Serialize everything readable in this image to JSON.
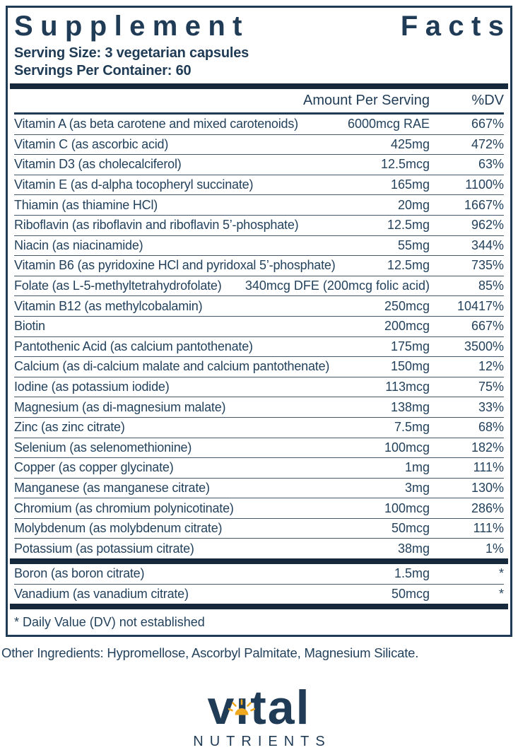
{
  "label": {
    "title_words": [
      "Supplement",
      "Facts"
    ],
    "serving_size": "Serving Size: 3 vegetarian capsules",
    "servings_per_container": "Servings Per Container: 60",
    "columns": {
      "amount": "Amount Per Serving",
      "dv": "%DV"
    },
    "rows": [
      {
        "name": "Vitamin A (as beta carotene and mixed carotenoids)",
        "amount": "6000mcg RAE",
        "dv": "667%"
      },
      {
        "name": "Vitamin C (as ascorbic acid)",
        "amount": "425mg",
        "dv": "472%"
      },
      {
        "name": "Vitamin D3 (as cholecalciferol)",
        "amount": "12.5mcg",
        "dv": "63%"
      },
      {
        "name": "Vitamin E (as d-alpha tocopheryl succinate)",
        "amount": "165mg",
        "dv": "1100%"
      },
      {
        "name": "Thiamin (as thiamine HCl)",
        "amount": "20mg",
        "dv": "1667%"
      },
      {
        "name": "Riboflavin (as riboflavin and riboflavin 5’-phosphate)",
        "amount": "12.5mg",
        "dv": "962%"
      },
      {
        "name": "Niacin (as niacinamide)",
        "amount": "55mg",
        "dv": "344%"
      },
      {
        "name": "Vitamin B6 (as pyridoxine HCl and pyridoxal 5’-phosphate)",
        "amount": "12.5mg",
        "dv": "735%"
      },
      {
        "name": "Folate (as L-5-methyltetrahydrofolate)",
        "amount": "340mcg DFE (200mcg folic acid)",
        "dv": "85%"
      },
      {
        "name": "Vitamin B12 (as methylcobalamin)",
        "amount": "250mcg",
        "dv": "10417%"
      },
      {
        "name": "Biotin",
        "amount": "200mcg",
        "dv": "667%"
      },
      {
        "name": "Pantothenic Acid (as calcium pantothenate)",
        "amount": "175mg",
        "dv": "3500%"
      },
      {
        "name": "Calcium (as di-calcium malate and calcium pantothenate)",
        "amount": "150mg",
        "dv": "12%"
      },
      {
        "name": "Iodine (as potassium iodide)",
        "amount": "113mcg",
        "dv": "75%"
      },
      {
        "name": "Magnesium (as di-magnesium malate)",
        "amount": "138mg",
        "dv": "33%"
      },
      {
        "name": "Zinc (as zinc citrate)",
        "amount": "7.5mg",
        "dv": "68%"
      },
      {
        "name": "Selenium (as selenomethionine)",
        "amount": "100mcg",
        "dv": "182%"
      },
      {
        "name": "Copper (as copper glycinate)",
        "amount": "1mg",
        "dv": "111%"
      },
      {
        "name": "Manganese (as manganese citrate)",
        "amount": "3mg",
        "dv": "130%"
      },
      {
        "name": "Chromium (as chromium polynicotinate)",
        "amount": "100mcg",
        "dv": "286%"
      },
      {
        "name": "Molybdenum (as molybdenum citrate)",
        "amount": "50mcg",
        "dv": "111%"
      },
      {
        "name": "Potassium (as potassium citrate)",
        "amount": "38mg",
        "dv": "1%"
      }
    ],
    "secondary_rows": [
      {
        "name": "Boron (as boron citrate)",
        "amount": "1.5mg",
        "dv": "*"
      },
      {
        "name": "Vanadium (as vanadium citrate)",
        "amount": "50mcg",
        "dv": "*"
      }
    ],
    "footnote": "* Daily Value (DV) not established",
    "other_ingredients": "Other Ingredients: Hypromellose, Ascorbyl Palmitate, Magnesium Silicate."
  },
  "logo": {
    "brand": "vital",
    "brand_display": "vıtal",
    "subtext": "NUTRIENTS",
    "sun_icon": "sun-icon"
  },
  "colors": {
    "navy": "#1f3b55",
    "bar_navy": "#16293c",
    "gold": "#f0a81e"
  }
}
